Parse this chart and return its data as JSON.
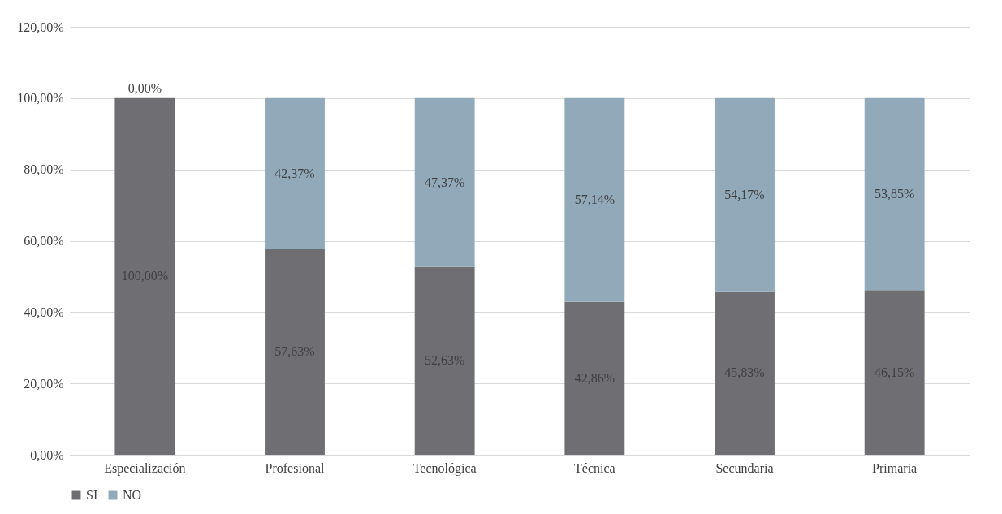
{
  "chart_data": {
    "type": "bar",
    "stacked": true,
    "categories": [
      "Especialización",
      "Profesional",
      "Tecnológica",
      "Técnica",
      "Secundaria",
      "Primaria"
    ],
    "series": [
      {
        "name": "SI",
        "color": "#6f6e72",
        "values": [
          100,
          57.63,
          52.63,
          42.86,
          45.83,
          46.15
        ],
        "value_labels": [
          "100,00%",
          "57,63%",
          "52,63%",
          "42,86%",
          "45,83%",
          "46,15%"
        ]
      },
      {
        "name": "NO",
        "color": "#91a9b9",
        "values": [
          0,
          42.37,
          47.37,
          57.14,
          54.17,
          53.85
        ],
        "value_labels": [
          "0,00%",
          "42,37%",
          "47,37%",
          "57,14%",
          "54,17%",
          "53,85%"
        ]
      }
    ],
    "ylim": [
      0,
      120
    ],
    "yticks": [
      {
        "value": 0,
        "label": "0,00%"
      },
      {
        "value": 20,
        "label": "20,00%"
      },
      {
        "value": 40,
        "label": "40,00%"
      },
      {
        "value": 60,
        "label": "60,00%"
      },
      {
        "value": 80,
        "label": "80,00%"
      },
      {
        "value": 100,
        "label": "100,00%"
      },
      {
        "value": 120,
        "label": "120,00%"
      }
    ],
    "grid": "y",
    "legend": "bottom"
  }
}
